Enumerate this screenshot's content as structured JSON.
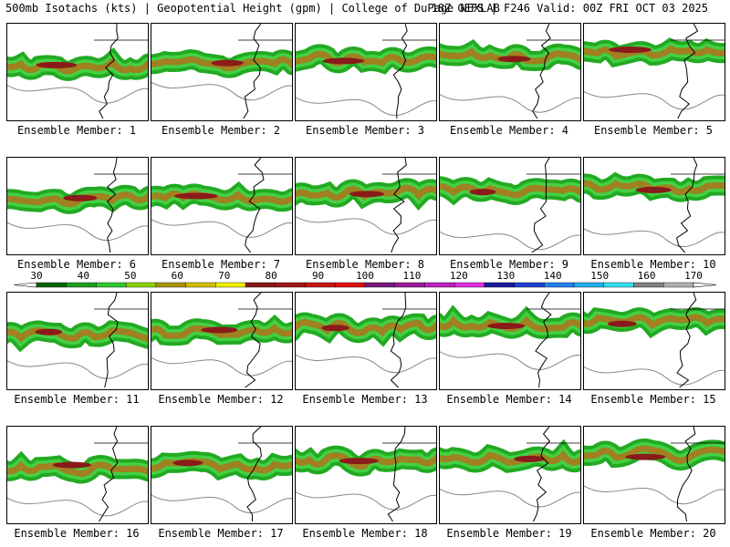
{
  "header": {
    "left": "500mb Isotachs (kts) | Geopotential Height (gpm) | College of DuPage NEXLAB",
    "right": "18Z GEFS | F246 Valid: 00Z FRI OCT 03 2025"
  },
  "members": [
    {
      "label": "Ensemble Member: 1"
    },
    {
      "label": "Ensemble Member: 2"
    },
    {
      "label": "Ensemble Member: 3"
    },
    {
      "label": "Ensemble Member: 4"
    },
    {
      "label": "Ensemble Member: 5"
    },
    {
      "label": "Ensemble Member: 6"
    },
    {
      "label": "Ensemble Member: 7"
    },
    {
      "label": "Ensemble Member: 8"
    },
    {
      "label": "Ensemble Member: 9"
    },
    {
      "label": "Ensemble Member: 10"
    },
    {
      "label": "Ensemble Member: 11"
    },
    {
      "label": "Ensemble Member: 12"
    },
    {
      "label": "Ensemble Member: 13"
    },
    {
      "label": "Ensemble Member: 14"
    },
    {
      "label": "Ensemble Member: 15"
    },
    {
      "label": "Ensemble Member: 16"
    },
    {
      "label": "Ensemble Member: 17"
    },
    {
      "label": "Ensemble Member: 18"
    },
    {
      "label": "Ensemble Member: 19"
    },
    {
      "label": "Ensemble Member: 20"
    }
  ],
  "colorbar": {
    "labels": [
      "30",
      "40",
      "50",
      "60",
      "70",
      "80",
      "90",
      "100",
      "110",
      "120",
      "130",
      "140",
      "150",
      "160",
      "170"
    ],
    "colors": [
      "#006400",
      "#1e9e1e",
      "#2ec82e",
      "#8bd400",
      "#a89400",
      "#d4c000",
      "#f0f000",
      "#8b1a1a",
      "#a01818",
      "#c81414",
      "#e01010",
      "#7a1a7a",
      "#9a1a9a",
      "#c020c0",
      "#e030e0",
      "#1a1aa0",
      "#2040d0",
      "#2080f0",
      "#20b0f0",
      "#30e0f0",
      "#808080",
      "#b0b0b0"
    ]
  },
  "colors": {
    "jet_green": "#22aa22",
    "jet_light": "#44d044",
    "jet_core": "#8b1a1a",
    "jet_mid": "#a08020",
    "height_contour": "#888888",
    "coast": "#000000"
  }
}
